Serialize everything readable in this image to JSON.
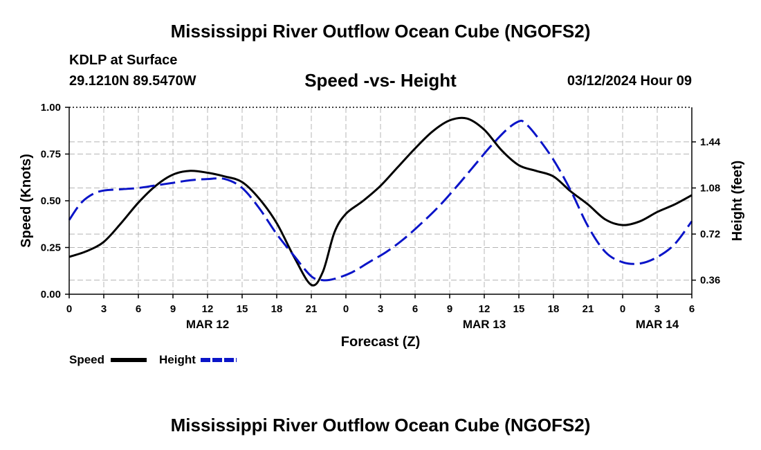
{
  "header": {
    "title": "Mississippi River Outflow Ocean Cube (NGOFS2)",
    "station": "KDLP at Surface",
    "coords": "29.1210N  89.5470W",
    "chart_title": "Speed -vs- Height",
    "datetime": "03/12/2024 Hour 09"
  },
  "footer": {
    "title": "Mississippi River Outflow Ocean Cube (NGOFS2)"
  },
  "chart_data": {
    "type": "line",
    "title": "Speed -vs- Height",
    "xlabel": "Forecast (Z)",
    "ylabel": "Speed (Knots)",
    "y2label": "Height (feet)",
    "x_range": [
      0,
      54
    ],
    "ylim": [
      0,
      1.0
    ],
    "y2lim": [
      0.25,
      1.71
    ],
    "x_ticks": [
      0,
      3,
      6,
      9,
      12,
      15,
      18,
      21,
      24,
      27,
      30,
      33,
      36,
      39,
      42,
      45,
      48,
      51,
      54
    ],
    "x_tick_labels": [
      "0",
      "3",
      "6",
      "9",
      "12",
      "15",
      "18",
      "21",
      "0",
      "3",
      "6",
      "9",
      "12",
      "15",
      "18",
      "21",
      "0",
      "3",
      "6"
    ],
    "day_labels": [
      {
        "x": 12,
        "label": "MAR 12"
      },
      {
        "x": 36,
        "label": "MAR 13"
      },
      {
        "x": 51,
        "label": "MAR 14"
      }
    ],
    "y_ticks": [
      0,
      0.25,
      0.5,
      0.75,
      1.0
    ],
    "y_tick_labels": [
      "0.00",
      "0.25",
      "0.50",
      "0.75",
      "1.00"
    ],
    "y2_ticks": [
      0.36,
      0.72,
      1.08,
      1.44
    ],
    "y2_tick_labels": [
      "0.36",
      "0.72",
      "1.08",
      "1.44"
    ],
    "grid": true,
    "legend": {
      "placement": "bottom-left",
      "speed_label": "Speed",
      "height_label": "Height"
    },
    "series": [
      {
        "name": "Speed",
        "axis": "left",
        "color": "#000000",
        "dash": "solid",
        "x": [
          0,
          1.5,
          3,
          4.5,
          6,
          7.5,
          9,
          10.5,
          12,
          13.5,
          15,
          16.5,
          18,
          19.5,
          21,
          22,
          23,
          24,
          25.5,
          27,
          28.5,
          30,
          31.5,
          33,
          34.5,
          36,
          37.5,
          39,
          40.5,
          42,
          43.5,
          45,
          46.5,
          48,
          49.5,
          51,
          52.5,
          54
        ],
        "y": [
          0.2,
          0.23,
          0.28,
          0.38,
          0.49,
          0.58,
          0.64,
          0.66,
          0.65,
          0.63,
          0.6,
          0.51,
          0.38,
          0.2,
          0.05,
          0.12,
          0.33,
          0.43,
          0.5,
          0.58,
          0.68,
          0.78,
          0.87,
          0.93,
          0.94,
          0.88,
          0.77,
          0.69,
          0.66,
          0.63,
          0.55,
          0.48,
          0.4,
          0.37,
          0.39,
          0.44,
          0.48,
          0.53
        ]
      },
      {
        "name": "Height",
        "axis": "right",
        "color": "#0a14c8",
        "dash": "dashed",
        "x": [
          0,
          1,
          2,
          3,
          4.5,
          6,
          7.5,
          9,
          10.5,
          12,
          13.5,
          15,
          16.5,
          18,
          19.5,
          21,
          22,
          23,
          24.5,
          26,
          27.5,
          29,
          30.5,
          32,
          33.5,
          35,
          36.5,
          38,
          39,
          39.5,
          40.5,
          42,
          43.5,
          45,
          46.5,
          48,
          49.5,
          51,
          52.5,
          54
        ],
        "y": [
          0.83,
          0.96,
          1.03,
          1.06,
          1.07,
          1.08,
          1.1,
          1.12,
          1.14,
          1.15,
          1.15,
          1.08,
          0.92,
          0.72,
          0.55,
          0.39,
          0.36,
          0.37,
          0.42,
          0.5,
          0.58,
          0.68,
          0.8,
          0.93,
          1.08,
          1.24,
          1.4,
          1.54,
          1.6,
          1.59,
          1.49,
          1.3,
          1.06,
          0.78,
          0.58,
          0.5,
          0.49,
          0.54,
          0.64,
          0.82
        ]
      }
    ]
  }
}
